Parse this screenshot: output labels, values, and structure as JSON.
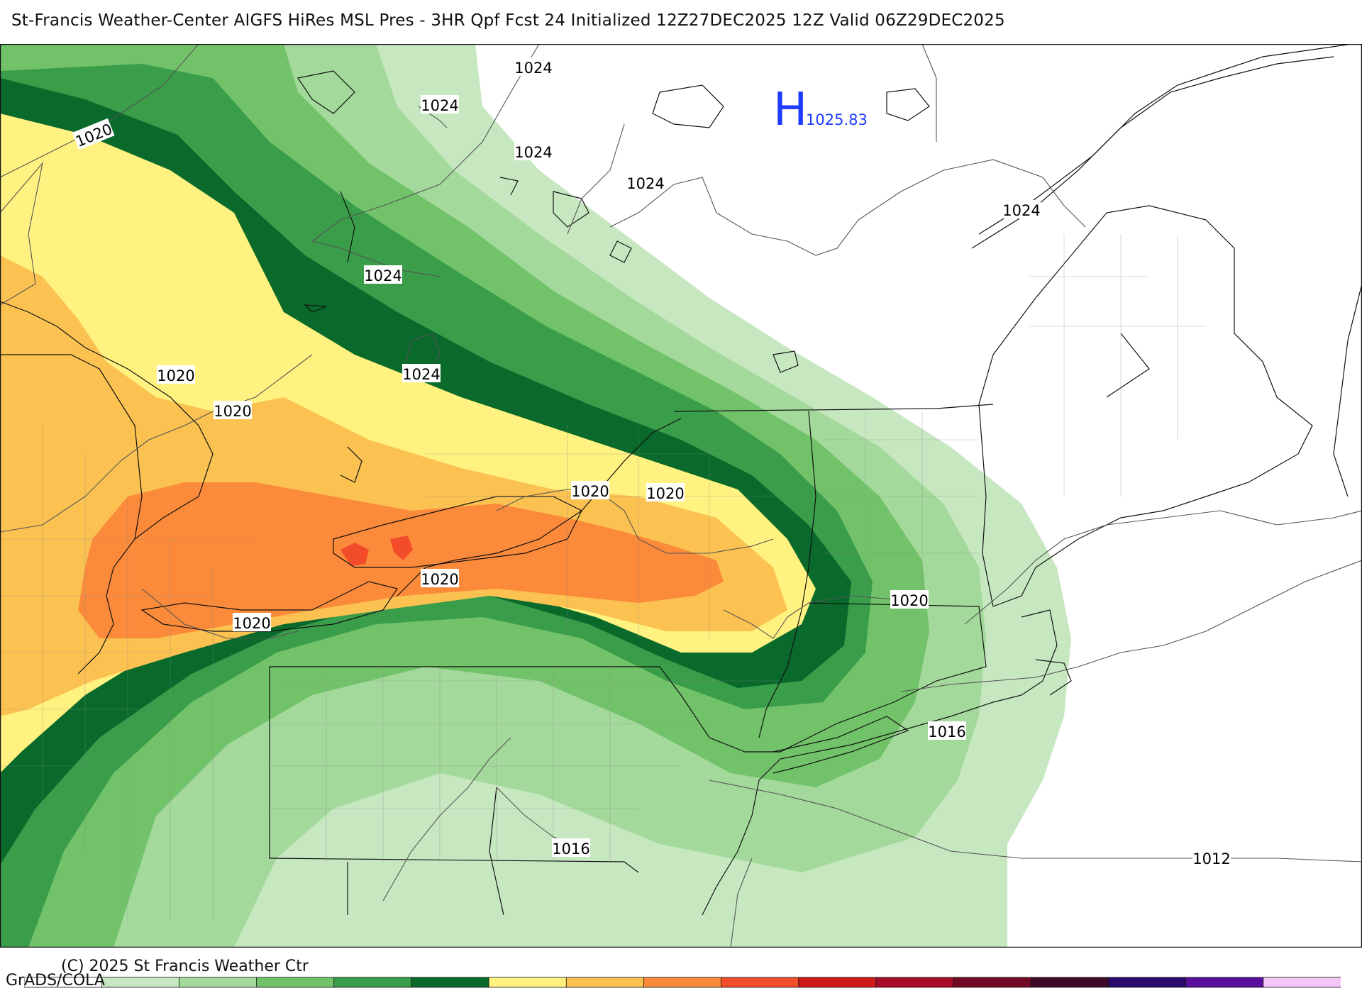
{
  "header": {
    "title": "St-Francis Weather-Center AIGFS HiRes MSL Pres - 3HR Qpf Fcst 24 Initialized 12Z27DEC2025 12Z Valid 06Z29DEC2025"
  },
  "high_center": {
    "letter": "H",
    "value": "1025.83",
    "color": "#1f3bff"
  },
  "isobar_labels": [
    "1020",
    "1024",
    "1024",
    "1024",
    "1024",
    "1024",
    "1024",
    "1024",
    "1020",
    "1020",
    "1024",
    "1020",
    "1020",
    "1020",
    "1020",
    "1020",
    "1020",
    "1016",
    "1016",
    "1012"
  ],
  "footer": {
    "copyright": "(C) 2025 St Francis Weather Ctr",
    "grads": "GrADS/COLA"
  },
  "legend": {
    "colors": [
      "#ffffff",
      "#c7e7c1",
      "#a3d99a",
      "#72c26a",
      "#3a9d4a",
      "#0a6a2b",
      "#fff280",
      "#fbc252",
      "#fb8a3a",
      "#f24c2a",
      "#cf1a1a",
      "#a80a2a",
      "#730a25",
      "#3f0a2a",
      "#2a0a6a",
      "#5a0f9c",
      "#f3c6f7"
    ]
  },
  "map_colors": {
    "green1": "#c7e7c1",
    "green2": "#a3d99a",
    "green3": "#72c26a",
    "green4": "#3a9d4a",
    "green5": "#0a6a2b",
    "yellow": "#fff280",
    "lorange": "#fbc252",
    "orange": "#fb8a3a",
    "red": "#f24c2a"
  }
}
